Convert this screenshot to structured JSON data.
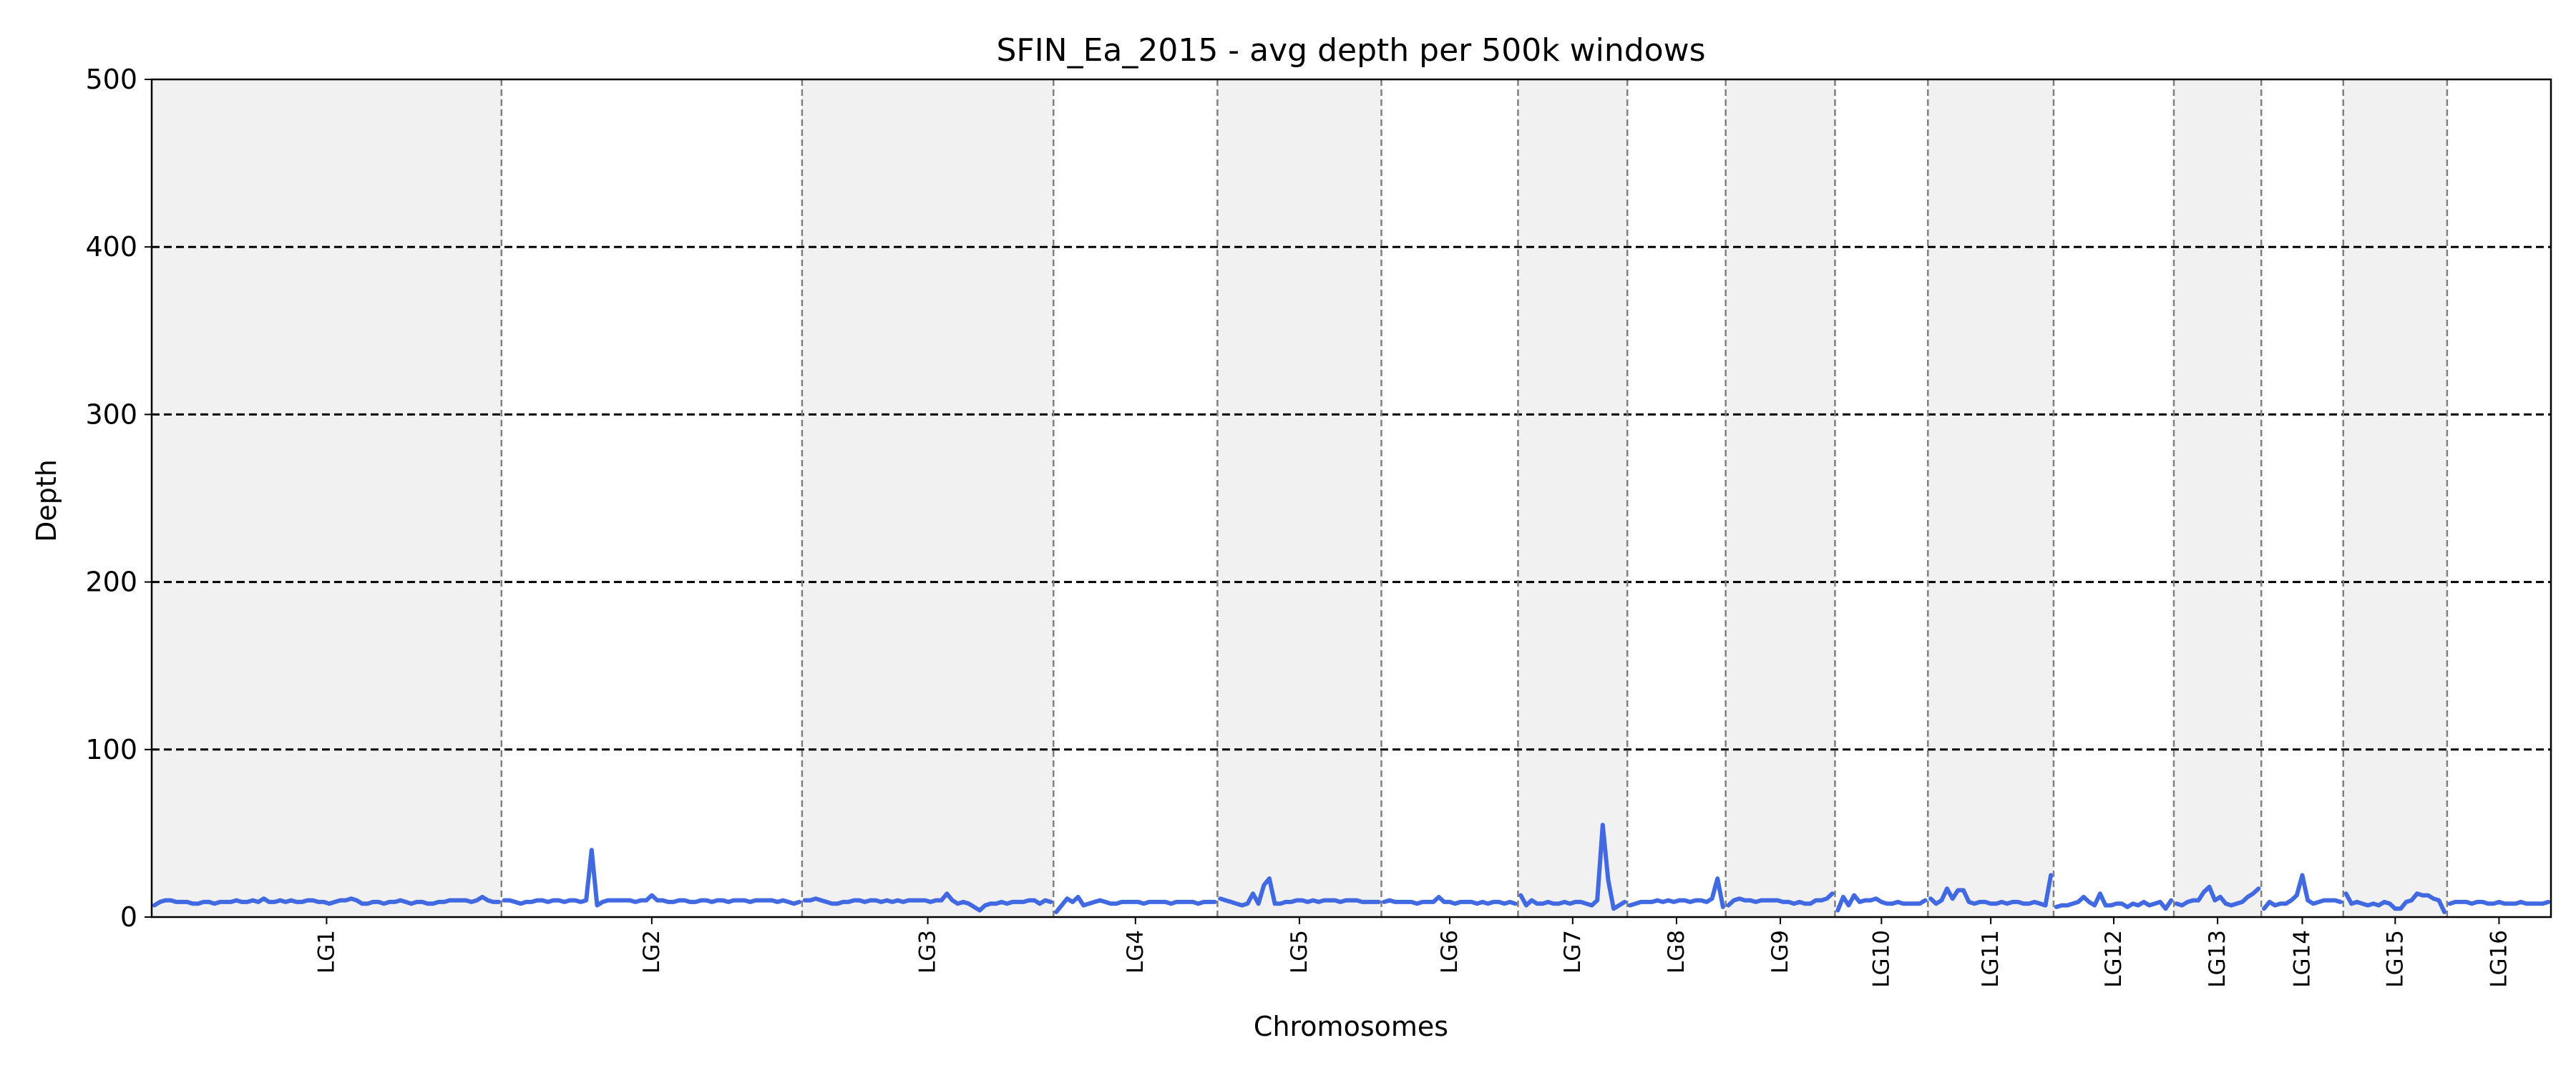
{
  "chart_data": {
    "type": "line",
    "title": "SFIN_Ea_2015 - avg depth per 500k windows",
    "xlabel": "Chromosomes",
    "ylabel": "Depth",
    "ylim": [
      0,
      500
    ],
    "yticks": [
      0,
      100,
      200,
      300,
      400,
      500
    ],
    "hlines": [
      100,
      200,
      300,
      400
    ],
    "grid": "horizontal dashed lines at 100, 200, 300, 400; vertical dashed chromosome boundaries",
    "shading": "alternating light gray bands for odd-numbered chromosomes",
    "colors": {
      "line": "#4169e1",
      "band": "#f1f1f1",
      "boundary": "#808080",
      "hline": "#000000"
    },
    "chromosomes": [
      {
        "name": "LG1",
        "windows": 64
      },
      {
        "name": "LG2",
        "windows": 55
      },
      {
        "name": "LG3",
        "windows": 46
      },
      {
        "name": "LG4",
        "windows": 30
      },
      {
        "name": "LG5",
        "windows": 30
      },
      {
        "name": "LG6",
        "windows": 25
      },
      {
        "name": "LG7",
        "windows": 20
      },
      {
        "name": "LG8",
        "windows": 18
      },
      {
        "name": "LG9",
        "windows": 20
      },
      {
        "name": "LG10",
        "windows": 17
      },
      {
        "name": "LG11",
        "windows": 23
      },
      {
        "name": "LG12",
        "windows": 22
      },
      {
        "name": "LG13",
        "windows": 16
      },
      {
        "name": "LG14",
        "windows": 15
      },
      {
        "name": "LG15",
        "windows": 19
      },
      {
        "name": "LG16",
        "windows": 19
      }
    ],
    "series": [
      {
        "values": [
          7,
          9,
          10,
          10,
          9,
          9,
          9,
          8,
          8,
          9,
          9,
          8,
          9,
          9,
          9,
          10,
          9,
          9,
          10,
          9,
          11,
          9,
          9,
          10,
          9,
          10,
          9,
          9,
          10,
          10,
          9,
          9,
          8,
          9,
          10,
          10,
          11,
          10,
          8,
          8,
          9,
          9,
          8,
          9,
          9,
          10,
          9,
          8,
          9,
          9,
          8,
          8,
          9,
          9,
          10,
          10,
          10,
          10,
          9,
          10,
          12,
          10,
          9,
          9,
          10,
          10,
          9,
          8,
          9,
          9,
          10,
          10,
          9,
          10,
          10,
          9,
          10,
          10,
          9,
          10,
          40,
          7,
          9,
          10,
          10,
          10,
          10,
          10,
          9,
          10,
          10,
          13,
          10,
          10,
          9,
          9,
          10,
          10,
          9,
          9,
          10,
          10,
          9,
          10,
          10,
          9,
          10,
          10,
          10,
          9,
          10,
          10,
          10,
          10,
          9,
          10,
          9,
          8,
          9,
          10,
          10,
          11,
          10,
          9,
          8,
          8,
          9,
          9,
          10,
          10,
          9,
          10,
          10,
          9,
          10,
          9,
          10,
          9,
          10,
          10,
          10,
          10,
          9,
          10,
          10,
          14,
          10,
          8,
          9,
          8,
          6,
          4,
          7,
          8,
          8,
          9,
          8,
          9,
          9,
          9,
          10,
          10,
          8,
          10,
          9,
          3,
          7,
          11,
          9,
          12,
          7,
          8,
          9,
          10,
          9,
          8,
          8,
          9,
          9,
          9,
          9,
          8,
          9,
          9,
          9,
          9,
          8,
          9,
          9,
          9,
          9,
          8,
          9,
          9,
          9,
          11,
          10,
          9,
          8,
          7,
          8,
          14,
          8,
          19,
          23,
          8,
          8,
          9,
          9,
          10,
          10,
          9,
          10,
          9,
          10,
          10,
          10,
          9,
          10,
          10,
          10,
          9,
          9,
          9,
          9,
          9,
          10,
          9,
          9,
          9,
          9,
          8,
          9,
          9,
          9,
          12,
          9,
          9,
          8,
          9,
          9,
          9,
          8,
          9,
          8,
          9,
          9,
          8,
          9,
          8,
          13,
          7,
          10,
          8,
          8,
          9,
          8,
          8,
          9,
          8,
          9,
          9,
          8,
          7,
          10,
          55,
          22,
          5,
          7,
          9,
          7,
          8,
          9,
          9,
          9,
          10,
          9,
          10,
          9,
          10,
          10,
          9,
          10,
          10,
          9,
          11,
          23,
          6,
          7,
          10,
          11,
          10,
          10,
          9,
          10,
          10,
          10,
          10,
          9,
          9,
          8,
          9,
          8,
          8,
          10,
          10,
          11,
          14,
          4,
          12,
          7,
          13,
          9,
          10,
          10,
          11,
          9,
          8,
          8,
          9,
          8,
          8,
          8,
          8,
          10,
          11,
          8,
          10,
          17,
          11,
          16,
          16,
          9,
          8,
          9,
          9,
          8,
          8,
          9,
          8,
          9,
          9,
          8,
          8,
          9,
          8,
          7,
          25,
          6,
          7,
          7,
          8,
          9,
          12,
          9,
          7,
          14,
          7,
          7,
          8,
          8,
          6,
          8,
          7,
          9,
          7,
          8,
          9,
          5,
          10,
          8,
          7,
          9,
          10,
          10,
          15,
          18,
          10,
          12,
          8,
          7,
          8,
          9,
          12,
          14,
          17,
          5,
          9,
          7,
          8,
          8,
          10,
          13,
          25,
          10,
          8,
          9,
          10,
          10,
          10,
          9,
          14,
          8,
          9,
          8,
          7,
          8,
          7,
          9,
          8,
          5,
          5,
          9,
          10,
          14,
          13,
          13,
          11,
          10,
          3,
          8,
          9,
          9,
          9,
          8,
          9,
          9,
          8,
          8,
          9,
          8,
          8,
          8,
          9,
          8,
          8,
          8,
          8,
          9
        ]
      }
    ]
  }
}
